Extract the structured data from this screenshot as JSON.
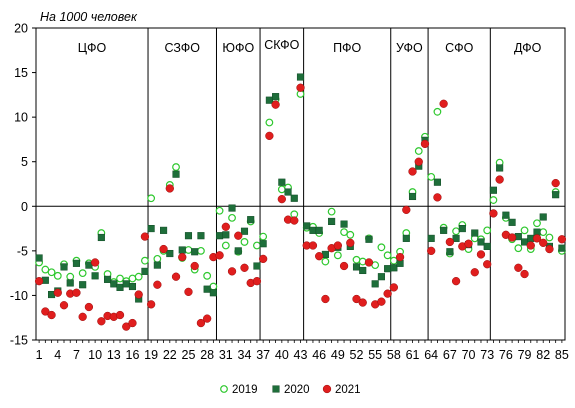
{
  "chart_data": {
    "type": "scatter",
    "title": "",
    "subtitle": "На 1000 человек",
    "xlabel": "",
    "ylabel": "",
    "ylim": [
      -15,
      20
    ],
    "yticks": [
      20,
      15,
      10,
      5,
      0,
      -5,
      -10,
      -15
    ],
    "xlim": [
      1,
      85
    ],
    "xticks": [
      1,
      4,
      7,
      10,
      13,
      16,
      19,
      22,
      25,
      28,
      31,
      34,
      37,
      40,
      43,
      46,
      49,
      52,
      55,
      58,
      61,
      64,
      67,
      70,
      73,
      76,
      79,
      82,
      85
    ],
    "grid": false,
    "legend_position": "bottom",
    "groups": [
      {
        "label": "ЦФО",
        "start": 1,
        "end": 18
      },
      {
        "label": "СЗФО",
        "start": 19,
        "end": 29
      },
      {
        "label": "ЮФО",
        "start": 30,
        "end": 36
      },
      {
        "label": "СКФО",
        "start": 37,
        "end": 43
      },
      {
        "label": "ПФО",
        "start": 44,
        "end": 57
      },
      {
        "label": "УФО",
        "start": 58,
        "end": 63
      },
      {
        "label": "СФО",
        "start": 64,
        "end": 73
      },
      {
        "label": "ДФО",
        "start": 74,
        "end": 85
      }
    ],
    "series": [
      {
        "name": "2019",
        "color": "#2ec82e",
        "marker": "circle-open",
        "x": [
          1,
          2,
          3,
          4,
          5,
          6,
          7,
          8,
          9,
          10,
          11,
          12,
          13,
          14,
          15,
          16,
          17,
          18,
          19,
          20,
          21,
          22,
          23,
          24,
          25,
          26,
          27,
          28,
          29,
          30,
          31,
          32,
          33,
          34,
          35,
          36,
          37,
          38,
          39,
          40,
          41,
          42,
          43,
          44,
          45,
          46,
          47,
          48,
          49,
          50,
          51,
          52,
          53,
          54,
          55,
          56,
          57,
          58,
          59,
          60,
          61,
          62,
          63,
          64,
          65,
          66,
          67,
          68,
          69,
          70,
          71,
          72,
          73,
          74,
          75,
          76,
          77,
          78,
          79,
          80,
          81,
          82,
          83,
          84,
          85
        ],
        "y": [
          -6.3,
          -7.1,
          -7.4,
          -7.8,
          -6.5,
          -7.9,
          -6.1,
          -7.5,
          -6.4,
          -6.8,
          -3.0,
          -7.6,
          -8.5,
          -8.1,
          -8.4,
          -8.1,
          -7.9,
          -6.1,
          0.9,
          -5.9,
          -5.0,
          2.4,
          4.4,
          -5.8,
          -4.9,
          -7.1,
          -5.0,
          -7.8,
          -9.0,
          -0.5,
          -4.4,
          -1.3,
          -5.1,
          -4.0,
          -1.7,
          -4.4,
          -3.4,
          9.4,
          12.0,
          1.9,
          2.1,
          -0.9,
          12.6,
          -2.4,
          -2.3,
          -3.0,
          -6.2,
          -0.6,
          -5.5,
          -2.9,
          -3.2,
          -6.0,
          -6.2,
          -3.6,
          -6.6,
          -4.6,
          -5.5,
          -6.1,
          -5.1,
          -3.0,
          1.6,
          6.2,
          7.8,
          3.3,
          10.6,
          -2.4,
          -5.3,
          -2.8,
          -2.1,
          -4.8,
          -3.6,
          -3.7,
          -2.7,
          0.7,
          4.9,
          -1.3,
          -3.7,
          -4.7,
          -2.7,
          -4.8,
          -1.9,
          -2.9,
          -3.5,
          1.6,
          -5.0
        ]
      },
      {
        "name": "2020",
        "color": "#1e6e3a",
        "marker": "square",
        "x": [
          1,
          2,
          3,
          4,
          5,
          6,
          7,
          8,
          9,
          10,
          11,
          12,
          13,
          14,
          15,
          16,
          17,
          18,
          19,
          20,
          21,
          22,
          23,
          24,
          25,
          26,
          27,
          28,
          29,
          30,
          31,
          32,
          33,
          34,
          35,
          36,
          37,
          38,
          39,
          40,
          41,
          42,
          43,
          44,
          45,
          46,
          47,
          48,
          49,
          50,
          51,
          52,
          53,
          54,
          55,
          56,
          57,
          58,
          59,
          60,
          61,
          62,
          63,
          64,
          65,
          66,
          67,
          68,
          69,
          70,
          71,
          72,
          73,
          74,
          75,
          76,
          77,
          78,
          79,
          80,
          81,
          82,
          83,
          84,
          85
        ],
        "y": [
          -5.8,
          -8.3,
          -9.9,
          -9.5,
          -6.8,
          -8.6,
          -6.4,
          -8.8,
          -6.6,
          -7.8,
          -3.5,
          -8.2,
          -8.7,
          -9.1,
          -8.7,
          -9.0,
          -10.4,
          -7.3,
          -2.5,
          -6.6,
          -2.7,
          -5.3,
          3.6,
          -4.9,
          -3.3,
          -5.1,
          -3.3,
          -9.3,
          -9.7,
          -3.3,
          -3.2,
          -0.2,
          -5.0,
          -2.8,
          -1.5,
          -6.7,
          -4.2,
          11.9,
          12.3,
          2.7,
          1.6,
          0.9,
          14.5,
          -2.2,
          -2.7,
          -2.7,
          -5.4,
          -1.7,
          -4.6,
          -2.0,
          -4.5,
          -6.8,
          -7.2,
          -3.7,
          -8.7,
          -7.9,
          -7.0,
          -6.9,
          -6.4,
          -3.6,
          1.1,
          4.5,
          7.4,
          -3.6,
          2.7,
          -2.7,
          -5.1,
          -3.6,
          -2.5,
          -4.3,
          -3.0,
          -4.0,
          -4.5,
          1.8,
          4.3,
          -1.0,
          -1.8,
          -3.4,
          -4.0,
          -3.6,
          -2.9,
          -1.2,
          -4.5,
          1.3,
          -4.7
        ]
      },
      {
        "name": "2021",
        "color": "#e01e1e",
        "marker": "circle",
        "x": [
          1,
          2,
          3,
          4,
          5,
          6,
          7,
          8,
          9,
          10,
          11,
          12,
          13,
          14,
          15,
          16,
          17,
          18,
          19,
          20,
          21,
          22,
          23,
          24,
          25,
          26,
          27,
          28,
          29,
          30,
          31,
          32,
          33,
          34,
          35,
          36,
          37,
          38,
          39,
          40,
          41,
          42,
          43,
          44,
          45,
          46,
          47,
          48,
          49,
          50,
          51,
          52,
          53,
          54,
          55,
          56,
          57,
          58,
          59,
          60,
          61,
          62,
          63,
          64,
          65,
          66,
          67,
          68,
          69,
          70,
          71,
          72,
          73,
          74,
          75,
          76,
          77,
          78,
          79,
          80,
          81,
          82,
          83,
          84,
          85
        ],
        "y": [
          -8.4,
          -11.8,
          -12.2,
          -9.7,
          -11.1,
          -9.8,
          -9.7,
          -12.4,
          -11.3,
          -6.3,
          -12.9,
          -12.3,
          -12.4,
          -12.2,
          -13.5,
          -13.1,
          -9.9,
          -3.4,
          -11.0,
          -8.8,
          -4.8,
          2.0,
          -7.9,
          -5.7,
          -9.6,
          -6.7,
          -13.1,
          -12.6,
          -5.7,
          -5.5,
          -2.3,
          -7.3,
          -3.3,
          -6.9,
          -8.6,
          -8.4,
          -5.9,
          7.9,
          11.4,
          0.8,
          -1.5,
          -1.6,
          13.3,
          -4.4,
          -4.4,
          -5.6,
          -10.4,
          -4.7,
          -4.4,
          -6.7,
          -4.1,
          -10.4,
          -10.8,
          -6.3,
          -11.0,
          -10.7,
          -9.8,
          -9.1,
          -5.7,
          -0.4,
          3.9,
          5.0,
          7.0,
          -5.0,
          1.0,
          11.5,
          -4.0,
          -8.4,
          -4.5,
          -4.2,
          -7.4,
          -5.4,
          -6.5,
          -0.8,
          3.0,
          -3.2,
          -3.5,
          -6.9,
          -7.6,
          -4.4,
          -3.6,
          -4.1,
          -4.8,
          2.6,
          -3.7
        ]
      }
    ]
  }
}
